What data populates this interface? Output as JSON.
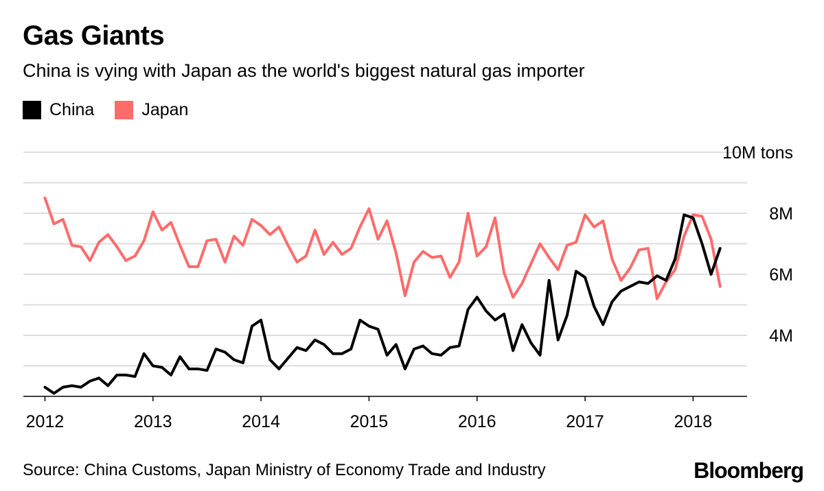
{
  "source": "Source: China Customs, Japan Ministry of Economy Trade and Industry",
  "brand": "Bloomberg",
  "chart_data": {
    "type": "line",
    "title": "Gas Giants",
    "subtitle": "China is vying with Japan as the world's biggest natural gas importer",
    "xlabel": "",
    "ylabel": "",
    "unit_label": "10M tons",
    "ylim": [
      2,
      10
    ],
    "yticks": [
      2,
      3,
      4,
      5,
      6,
      7,
      8,
      9,
      10
    ],
    "ytick_labels": [
      {
        "value": 4,
        "label": "4M"
      },
      {
        "value": 6,
        "label": "6M"
      },
      {
        "value": 8,
        "label": "8M"
      },
      {
        "value": 10,
        "label": "10M tons"
      }
    ],
    "xlim": [
      2011.8,
      2018.5
    ],
    "xtick_labels": [
      "2012",
      "2013",
      "2014",
      "2015",
      "2016",
      "2017",
      "2018"
    ],
    "x_start": 2012,
    "x_step_months": 1,
    "legend_position": "top-left",
    "grid": true,
    "series": [
      {
        "name": "China",
        "color": "#000000",
        "values": [
          2.3,
          2.1,
          2.3,
          2.35,
          2.3,
          2.5,
          2.6,
          2.35,
          2.7,
          2.7,
          2.65,
          3.4,
          3.0,
          2.95,
          2.7,
          3.3,
          2.9,
          2.9,
          2.85,
          3.55,
          3.45,
          3.2,
          3.1,
          4.3,
          4.5,
          3.2,
          2.9,
          3.25,
          3.6,
          3.5,
          3.85,
          3.7,
          3.4,
          3.4,
          3.55,
          4.5,
          4.3,
          4.2,
          3.35,
          3.7,
          2.9,
          3.55,
          3.65,
          3.4,
          3.35,
          3.6,
          3.65,
          4.85,
          5.25,
          4.8,
          4.5,
          4.7,
          3.5,
          4.35,
          3.75,
          3.35,
          5.8,
          3.85,
          4.65,
          6.1,
          5.9,
          4.95,
          4.35,
          5.1,
          5.45,
          5.6,
          5.75,
          5.7,
          5.95,
          5.8,
          6.5,
          7.95,
          7.85,
          7.0,
          6.0,
          6.85
        ]
      },
      {
        "name": "Japan",
        "color": "#ff6b6b",
        "values": [
          8.5,
          7.65,
          7.8,
          6.95,
          6.9,
          6.45,
          7.05,
          7.3,
          6.9,
          6.45,
          6.6,
          7.1,
          8.05,
          7.45,
          7.7,
          6.95,
          6.25,
          6.25,
          7.1,
          7.15,
          6.4,
          7.25,
          6.95,
          7.8,
          7.6,
          7.3,
          7.55,
          6.95,
          6.4,
          6.6,
          7.45,
          6.65,
          7.05,
          6.65,
          6.85,
          7.55,
          8.15,
          7.15,
          7.75,
          6.7,
          5.3,
          6.4,
          6.75,
          6.55,
          6.6,
          5.9,
          6.4,
          8.0,
          6.6,
          6.9,
          7.85,
          6.05,
          5.25,
          5.7,
          6.35,
          7.0,
          6.55,
          6.15,
          6.95,
          7.05,
          7.95,
          7.55,
          7.75,
          6.5,
          5.8,
          6.2,
          6.8,
          6.85,
          5.2,
          5.75,
          6.15,
          7.25,
          7.95,
          7.9,
          7.15,
          5.6
        ]
      }
    ]
  }
}
